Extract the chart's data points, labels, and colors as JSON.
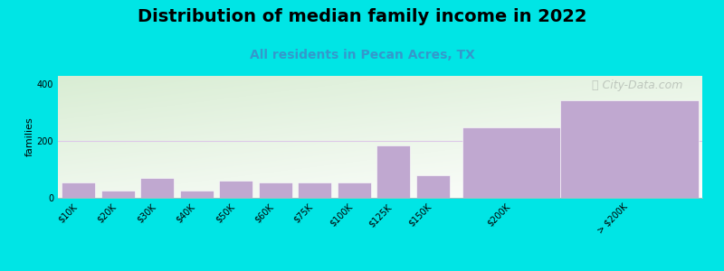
{
  "title": "Distribution of median family income in 2022",
  "subtitle": "All residents in Pecan Acres, TX",
  "ylabel": "families",
  "categories": [
    "$10K",
    "$20K",
    "$30K",
    "$40K",
    "$50K",
    "$60K",
    "$75K",
    "$100K",
    "$125K",
    "$150K",
    "$200K",
    "> $200K"
  ],
  "values": [
    55,
    25,
    70,
    25,
    60,
    55,
    55,
    55,
    185,
    80,
    250,
    345
  ],
  "x_positions": [
    0,
    1,
    2,
    3,
    4,
    5,
    6,
    7,
    8,
    9,
    11,
    14
  ],
  "bar_widths": [
    0.85,
    0.85,
    0.85,
    0.85,
    0.85,
    0.85,
    0.85,
    0.85,
    0.85,
    0.85,
    2.5,
    3.5
  ],
  "bar_color": "#c0a8d0",
  "bar_edge_color": "#ffffff",
  "background_color": "#00e5e5",
  "plot_bg_colors": [
    "#d8eac8",
    "#f8faf0",
    "#ffffff"
  ],
  "watermark_text": "ⓘ City-Data.com",
  "title_fontsize": 14,
  "subtitle_fontsize": 10,
  "subtitle_color": "#3399cc",
  "ylabel_fontsize": 8,
  "ylim": [
    0,
    430
  ],
  "yticks": [
    0,
    200,
    400
  ],
  "grid_color": "#ddc8e8",
  "tick_label_fontsize": 7,
  "watermark_color": "#b0b8b0",
  "watermark_fontsize": 9
}
